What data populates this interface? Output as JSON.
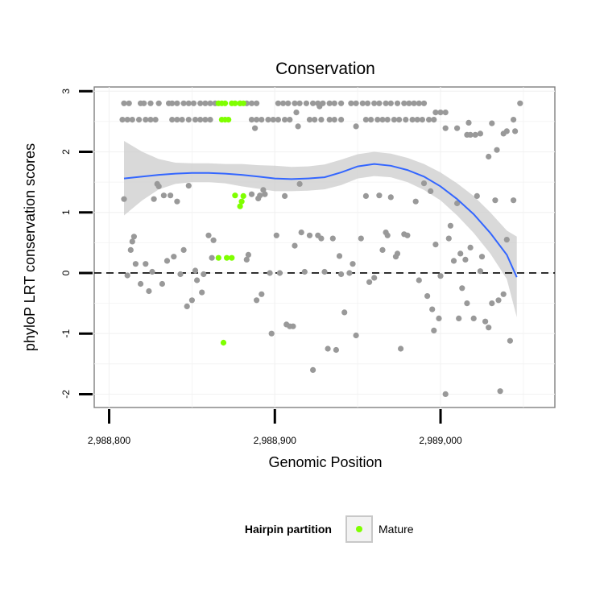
{
  "chart_data": {
    "type": "scatter",
    "title": "Conservation",
    "xlabel": "Genomic Position",
    "ylabel": "phyloP LRT conservation scores",
    "xlim": [
      2988791,
      2989069
    ],
    "ylim": [
      -2.22,
      3.07
    ],
    "x_ticks": [
      2988800,
      2988900,
      2989000
    ],
    "x_tick_labels": [
      "2,988,800",
      "2,988,900",
      "2,989,000"
    ],
    "y_ticks": [
      -2,
      -1,
      0,
      1,
      2,
      3
    ],
    "y_tick_labels": [
      "-2",
      "-1",
      "0",
      "1",
      "2",
      "3"
    ],
    "grid": true,
    "reference_line": {
      "y": 0,
      "style": "dashed"
    },
    "legend": {
      "title": "Hairpin partition",
      "placement": "bottom",
      "entries": [
        {
          "label": "Mature",
          "color": "#7fff00"
        }
      ]
    },
    "colors": {
      "other": "#999999",
      "mature": "#7fff00",
      "smooth": "#3366ff",
      "band": "#cccccc"
    },
    "series": [
      {
        "key": "other",
        "points": [
          [
            2988809,
            2.8
          ],
          [
            2988812,
            2.8
          ],
          [
            2988819,
            2.8
          ],
          [
            2988821,
            2.8
          ],
          [
            2988825,
            2.8
          ],
          [
            2988830,
            2.8
          ],
          [
            2988836,
            2.8
          ],
          [
            2988838,
            2.8
          ],
          [
            2988841,
            2.8
          ],
          [
            2988845,
            2.8
          ],
          [
            2988848,
            2.8
          ],
          [
            2988851,
            2.8
          ],
          [
            2988855,
            2.8
          ],
          [
            2988858,
            2.8
          ],
          [
            2988861,
            2.8
          ],
          [
            2988864,
            2.8
          ],
          [
            2988879,
            2.8
          ],
          [
            2988883,
            2.8
          ],
          [
            2988886,
            2.8
          ],
          [
            2988889,
            2.8
          ],
          [
            2988902,
            2.8
          ],
          [
            2988905,
            2.8
          ],
          [
            2988908,
            2.8
          ],
          [
            2988912,
            2.8
          ],
          [
            2988915,
            2.8
          ],
          [
            2988919,
            2.8
          ],
          [
            2988923,
            2.8
          ],
          [
            2988926,
            2.8
          ],
          [
            2988929,
            2.8
          ],
          [
            2988933,
            2.8
          ],
          [
            2988936,
            2.8
          ],
          [
            2988940,
            2.8
          ],
          [
            2988946,
            2.8
          ],
          [
            2988949,
            2.8
          ],
          [
            2988953,
            2.8
          ],
          [
            2988956,
            2.8
          ],
          [
            2988960,
            2.8
          ],
          [
            2988963,
            2.8
          ],
          [
            2988967,
            2.8
          ],
          [
            2988970,
            2.8
          ],
          [
            2988974,
            2.8
          ],
          [
            2988978,
            2.8
          ],
          [
            2988981,
            2.8
          ],
          [
            2988984,
            2.8
          ],
          [
            2988987,
            2.8
          ],
          [
            2988990,
            2.8
          ],
          [
            2989048,
            2.8
          ],
          [
            2988808,
            2.53
          ],
          [
            2988811,
            2.53
          ],
          [
            2988814,
            2.53
          ],
          [
            2988818,
            2.53
          ],
          [
            2988822,
            2.53
          ],
          [
            2988825,
            2.53
          ],
          [
            2988828,
            2.53
          ],
          [
            2988838,
            2.53
          ],
          [
            2988841,
            2.53
          ],
          [
            2988844,
            2.53
          ],
          [
            2988848,
            2.53
          ],
          [
            2988852,
            2.53
          ],
          [
            2988855,
            2.53
          ],
          [
            2988858,
            2.53
          ],
          [
            2988861,
            2.53
          ],
          [
            2988886,
            2.53
          ],
          [
            2988889,
            2.53
          ],
          [
            2988892,
            2.53
          ],
          [
            2988896,
            2.53
          ],
          [
            2988899,
            2.53
          ],
          [
            2988902,
            2.53
          ],
          [
            2988906,
            2.53
          ],
          [
            2988909,
            2.53
          ],
          [
            2988921,
            2.53
          ],
          [
            2988924,
            2.53
          ],
          [
            2988928,
            2.53
          ],
          [
            2988933,
            2.53
          ],
          [
            2988936,
            2.53
          ],
          [
            2988940,
            2.53
          ],
          [
            2988955,
            2.53
          ],
          [
            2988958,
            2.53
          ],
          [
            2988962,
            2.53
          ],
          [
            2988965,
            2.53
          ],
          [
            2988968,
            2.53
          ],
          [
            2988972,
            2.53
          ],
          [
            2988975,
            2.53
          ],
          [
            2988979,
            2.53
          ],
          [
            2988983,
            2.53
          ],
          [
            2988986,
            2.53
          ],
          [
            2988989,
            2.53
          ],
          [
            2988993,
            2.53
          ],
          [
            2988996,
            2.53
          ],
          [
            2989044,
            2.53
          ],
          [
            2988997,
            2.65
          ],
          [
            2989000,
            2.65
          ],
          [
            2989003,
            2.65
          ],
          [
            2988913,
            2.65
          ],
          [
            2988927,
            2.75
          ],
          [
            2988888,
            2.39
          ],
          [
            2988914,
            2.42
          ],
          [
            2988949,
            2.42
          ],
          [
            2989003,
            2.39
          ],
          [
            2989010,
            2.39
          ],
          [
            2989016,
            2.28
          ],
          [
            2989018,
            2.28
          ],
          [
            2989021,
            2.28
          ],
          [
            2989017,
            2.48
          ],
          [
            2989024,
            2.3
          ],
          [
            2989031,
            2.47
          ],
          [
            2989038,
            2.3
          ],
          [
            2989040,
            2.34
          ],
          [
            2989045,
            2.34
          ],
          [
            2989029,
            1.92
          ],
          [
            2989034,
            2.03
          ],
          [
            2988809,
            1.22
          ],
          [
            2988811,
            -0.04
          ],
          [
            2988813,
            0.38
          ],
          [
            2988814,
            0.52
          ],
          [
            2988815,
            0.6
          ],
          [
            2988816,
            0.15
          ],
          [
            2988819,
            -0.18
          ],
          [
            2988822,
            0.15
          ],
          [
            2988824,
            -0.3
          ],
          [
            2988826,
            0.02
          ],
          [
            2988827,
            1.22
          ],
          [
            2988829,
            1.47
          ],
          [
            2988830,
            1.43
          ],
          [
            2988832,
            -0.18
          ],
          [
            2988833,
            1.28
          ],
          [
            2988835,
            0.2
          ],
          [
            2988837,
            1.28
          ],
          [
            2988839,
            0.27
          ],
          [
            2988841,
            1.18
          ],
          [
            2988843,
            -0.02
          ],
          [
            2988845,
            0.38
          ],
          [
            2988847,
            -0.55
          ],
          [
            2988848,
            1.44
          ],
          [
            2988850,
            -0.45
          ],
          [
            2988852,
            0.04
          ],
          [
            2988853,
            -0.12
          ],
          [
            2988856,
            -0.32
          ],
          [
            2988857,
            -0.02
          ],
          [
            2988860,
            0.62
          ],
          [
            2988862,
            0.25
          ],
          [
            2988863,
            0.54
          ],
          [
            2988883,
            0.22
          ],
          [
            2988884,
            0.3
          ],
          [
            2988886,
            1.3
          ],
          [
            2988889,
            -0.45
          ],
          [
            2988890,
            1.23
          ],
          [
            2988891,
            1.28
          ],
          [
            2988892,
            -0.35
          ],
          [
            2988893,
            1.37
          ],
          [
            2988894,
            1.3
          ],
          [
            2988897,
            0.0
          ],
          [
            2988898,
            -1.0
          ],
          [
            2988901,
            0.62
          ],
          [
            2988903,
            0.0
          ],
          [
            2988906,
            1.27
          ],
          [
            2988907,
            -0.85
          ],
          [
            2988909,
            -0.88
          ],
          [
            2988911,
            -0.88
          ],
          [
            2988912,
            0.45
          ],
          [
            2988915,
            1.47
          ],
          [
            2988916,
            0.67
          ],
          [
            2988918,
            0.02
          ],
          [
            2988921,
            0.62
          ],
          [
            2988923,
            -1.6
          ],
          [
            2988926,
            0.62
          ],
          [
            2988928,
            0.57
          ],
          [
            2988930,
            0.02
          ],
          [
            2988932,
            -1.25
          ],
          [
            2988935,
            0.57
          ],
          [
            2988937,
            -1.27
          ],
          [
            2988939,
            0.28
          ],
          [
            2988940,
            -0.02
          ],
          [
            2988942,
            -0.65
          ],
          [
            2988945,
            0.0
          ],
          [
            2988947,
            0.15
          ],
          [
            2988949,
            -1.03
          ],
          [
            2988952,
            0.57
          ],
          [
            2988955,
            1.27
          ],
          [
            2988957,
            -0.15
          ],
          [
            2988960,
            -0.08
          ],
          [
            2988963,
            1.28
          ],
          [
            2988965,
            0.38
          ],
          [
            2988967,
            0.67
          ],
          [
            2988968,
            0.62
          ],
          [
            2988970,
            1.25
          ],
          [
            2988973,
            0.27
          ],
          [
            2988974,
            0.32
          ],
          [
            2988976,
            -1.25
          ],
          [
            2988978,
            0.64
          ],
          [
            2988980,
            0.62
          ],
          [
            2988985,
            1.18
          ],
          [
            2988987,
            -0.12
          ],
          [
            2988990,
            1.48
          ],
          [
            2988992,
            -0.38
          ],
          [
            2988994,
            1.35
          ],
          [
            2988995,
            -0.6
          ],
          [
            2988996,
            -0.95
          ],
          [
            2988997,
            0.47
          ],
          [
            2988999,
            -0.75
          ],
          [
            2989000,
            -0.05
          ],
          [
            2989003,
            -2.0
          ],
          [
            2989005,
            0.57
          ],
          [
            2989006,
            0.78
          ],
          [
            2989008,
            0.2
          ],
          [
            2989010,
            1.15
          ],
          [
            2989011,
            -0.75
          ],
          [
            2989012,
            0.32
          ],
          [
            2989013,
            -0.25
          ],
          [
            2989015,
            0.22
          ],
          [
            2989016,
            -0.5
          ],
          [
            2989018,
            0.42
          ],
          [
            2989020,
            -0.75
          ],
          [
            2989022,
            1.27
          ],
          [
            2989024,
            0.03
          ],
          [
            2989025,
            0.27
          ],
          [
            2989027,
            -0.8
          ],
          [
            2989029,
            -0.9
          ],
          [
            2989031,
            -0.5
          ],
          [
            2989033,
            1.2
          ],
          [
            2989035,
            -0.45
          ],
          [
            2989036,
            -1.95
          ],
          [
            2989038,
            -0.35
          ],
          [
            2989040,
            0.55
          ],
          [
            2989042,
            -1.12
          ],
          [
            2989044,
            1.2
          ]
        ]
      },
      {
        "key": "mature",
        "name": "Mature",
        "points": [
          [
            2988866,
            2.8
          ],
          [
            2988868,
            2.8
          ],
          [
            2988870,
            2.8
          ],
          [
            2988874,
            2.8
          ],
          [
            2988876,
            2.8
          ],
          [
            2988879,
            2.8
          ],
          [
            2988881,
            2.8
          ],
          [
            2988868,
            2.53
          ],
          [
            2988870,
            2.53
          ],
          [
            2988872,
            2.53
          ],
          [
            2988876,
            1.28
          ],
          [
            2988879,
            1.1
          ],
          [
            2988880,
            1.18
          ],
          [
            2988881,
            1.27
          ],
          [
            2988866,
            0.25
          ],
          [
            2988871,
            0.25
          ],
          [
            2988874,
            0.25
          ],
          [
            2988869,
            -1.15
          ]
        ]
      }
    ],
    "smooth": {
      "x": [
        2988809,
        2988820,
        2988830,
        2988840,
        2988850,
        2988860,
        2988870,
        2988880,
        2988890,
        2988900,
        2988910,
        2988920,
        2988930,
        2988940,
        2988950,
        2988960,
        2988970,
        2988980,
        2988990,
        2989000,
        2989010,
        2989020,
        2989030,
        2989040,
        2989046
      ],
      "y": [
        1.56,
        1.59,
        1.62,
        1.64,
        1.65,
        1.65,
        1.64,
        1.62,
        1.59,
        1.56,
        1.55,
        1.56,
        1.58,
        1.66,
        1.76,
        1.8,
        1.77,
        1.7,
        1.59,
        1.43,
        1.22,
        0.97,
        0.66,
        0.3,
        -0.07
      ],
      "lower": [
        0.95,
        1.2,
        1.38,
        1.47,
        1.5,
        1.5,
        1.48,
        1.43,
        1.39,
        1.35,
        1.35,
        1.36,
        1.38,
        1.45,
        1.56,
        1.6,
        1.58,
        1.5,
        1.37,
        1.2,
        0.95,
        0.66,
        0.32,
        -0.1,
        -0.73
      ],
      "upper": [
        2.18,
        2.0,
        1.88,
        1.82,
        1.81,
        1.81,
        1.8,
        1.8,
        1.78,
        1.77,
        1.75,
        1.76,
        1.79,
        1.87,
        1.96,
        2.0,
        1.97,
        1.9,
        1.8,
        1.66,
        1.48,
        1.27,
        1.0,
        0.7,
        0.6
      ]
    }
  }
}
